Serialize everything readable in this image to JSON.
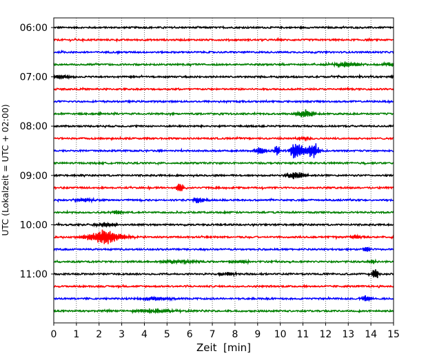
{
  "chart_data": {
    "type": "line",
    "title": "",
    "xlabel": "Zeit  [min]",
    "ylabel": "UTC (Lokalzeit = UTC + 02:00)",
    "xlim": [
      0,
      15
    ],
    "x_ticks": [
      "0",
      "1",
      "2",
      "3",
      "4",
      "5",
      "6",
      "7",
      "8",
      "9",
      "10",
      "11",
      "12",
      "13",
      "14",
      "15"
    ],
    "y_tick_labels": [
      "06:00",
      "07:00",
      "08:00",
      "09:00",
      "10:00",
      "11:00"
    ],
    "trace_interval_minutes": 15,
    "first_trace": "06:00",
    "grid": "vertical dotted",
    "colors": [
      "#000000",
      "#ff0000",
      "#0000ff",
      "#008000"
    ],
    "traces": [
      {
        "start": "06:00",
        "color": "#000000",
        "events": []
      },
      {
        "start": "06:15",
        "color": "#ff0000",
        "events": []
      },
      {
        "start": "06:30",
        "color": "#0000ff",
        "events": []
      },
      {
        "start": "06:45",
        "color": "#008000",
        "events": [
          {
            "t": 12.9,
            "amp": 4,
            "dur": 0.5
          },
          {
            "t": 14.8,
            "amp": 3,
            "dur": 0.3
          }
        ]
      },
      {
        "start": "07:00",
        "color": "#000000",
        "events": [
          {
            "t": 0.3,
            "amp": 3,
            "dur": 0.4
          }
        ]
      },
      {
        "start": "07:15",
        "color": "#ff0000",
        "events": []
      },
      {
        "start": "07:30",
        "color": "#0000ff",
        "events": []
      },
      {
        "start": "07:45",
        "color": "#008000",
        "events": [
          {
            "t": 11.1,
            "amp": 6,
            "dur": 0.3
          }
        ]
      },
      {
        "start": "08:00",
        "color": "#000000",
        "events": []
      },
      {
        "start": "08:15",
        "color": "#ff0000",
        "events": [
          {
            "t": 11.05,
            "amp": 3,
            "dur": 0.2
          }
        ]
      },
      {
        "start": "08:30",
        "color": "#0000ff",
        "events": [
          {
            "t": 9.15,
            "amp": 6,
            "dur": 0.2
          },
          {
            "t": 9.85,
            "amp": 8,
            "dur": 0.1
          },
          {
            "t": 10.6,
            "amp": 8,
            "dur": 0.15
          },
          {
            "t": 10.85,
            "amp": 9,
            "dur": 0.2
          },
          {
            "t": 11.45,
            "amp": 12,
            "dur": 0.2
          }
        ]
      },
      {
        "start": "08:45",
        "color": "#008000",
        "events": []
      },
      {
        "start": "09:00",
        "color": "#000000",
        "events": [
          {
            "t": 10.7,
            "amp": 6,
            "dur": 0.3
          }
        ]
      },
      {
        "start": "09:15",
        "color": "#ff0000",
        "events": [
          {
            "t": 5.55,
            "amp": 9,
            "dur": 0.1
          }
        ]
      },
      {
        "start": "09:30",
        "color": "#0000ff",
        "events": [
          {
            "t": 1.3,
            "amp": 3,
            "dur": 0.3
          },
          {
            "t": 6.4,
            "amp": 5,
            "dur": 0.2
          }
        ]
      },
      {
        "start": "09:45",
        "color": "#008000",
        "events": [
          {
            "t": 2.8,
            "amp": 3,
            "dur": 0.2
          }
        ]
      },
      {
        "start": "10:00",
        "color": "#000000",
        "events": [
          {
            "t": 2.3,
            "amp": 3,
            "dur": 0.4
          }
        ]
      },
      {
        "start": "10:15",
        "color": "#ff0000",
        "events": [
          {
            "t": 1.7,
            "amp": 4,
            "dur": 0.5
          },
          {
            "t": 2.25,
            "amp": 8,
            "dur": 0.3
          },
          {
            "t": 2.8,
            "amp": 4,
            "dur": 0.5
          },
          {
            "t": 13.3,
            "amp": 3,
            "dur": 0.2
          }
        ]
      },
      {
        "start": "10:30",
        "color": "#0000ff",
        "events": [
          {
            "t": 13.8,
            "amp": 6,
            "dur": 0.1
          }
        ]
      },
      {
        "start": "10:45",
        "color": "#008000",
        "events": [
          {
            "t": 5.5,
            "amp": 3,
            "dur": 0.6
          },
          {
            "t": 8.2,
            "amp": 3,
            "dur": 0.3
          },
          {
            "t": 14.05,
            "amp": 4,
            "dur": 0.1
          }
        ]
      },
      {
        "start": "11:00",
        "color": "#000000",
        "events": [
          {
            "t": 7.6,
            "amp": 3,
            "dur": 0.3
          },
          {
            "t": 14.2,
            "amp": 10,
            "dur": 0.1
          }
        ]
      },
      {
        "start": "11:15",
        "color": "#ff0000",
        "events": []
      },
      {
        "start": "11:30",
        "color": "#0000ff",
        "events": [
          {
            "t": 4.5,
            "amp": 3,
            "dur": 0.5
          },
          {
            "t": 13.8,
            "amp": 5,
            "dur": 0.15
          }
        ]
      },
      {
        "start": "11:45",
        "color": "#008000",
        "events": [
          {
            "t": 4.5,
            "amp": 3,
            "dur": 0.8
          }
        ]
      }
    ]
  }
}
